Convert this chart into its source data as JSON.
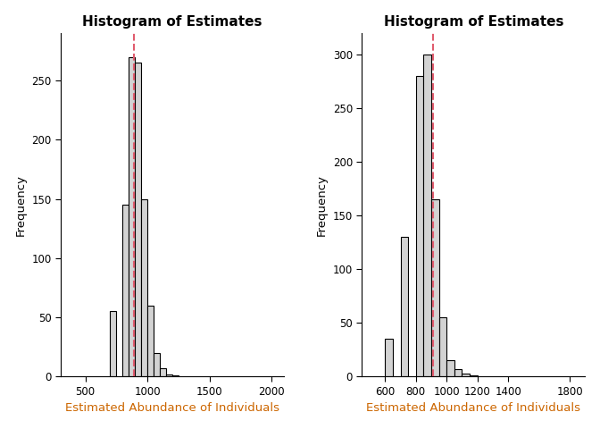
{
  "left": {
    "title": "Histogram of Estimates",
    "xlabel": "Estimated Abundance of Individuals",
    "ylabel": "Frequency",
    "bin_edges": [
      700,
      750,
      800,
      850,
      900,
      950,
      1000,
      1050,
      1100,
      1150,
      1200,
      1250,
      1300
    ],
    "frequencies": [
      55,
      0,
      145,
      270,
      265,
      150,
      60,
      20,
      7,
      2,
      1,
      0
    ],
    "vline": 890,
    "xlim": [
      300,
      2100
    ],
    "ylim": [
      0,
      290
    ],
    "xticks": [
      500,
      1000,
      1500,
      2000
    ],
    "yticks": [
      0,
      50,
      100,
      150,
      200,
      250
    ],
    "bar_color": "#d3d3d3",
    "bar_edgecolor": "#000000",
    "vline_color": "#e05c6e",
    "title_color": "#000000",
    "xlabel_color": "#cc6600",
    "ylabel_color": "#000000"
  },
  "right": {
    "title": "Histogram of Estimates",
    "xlabel": "Estimated Abundance of Individuals",
    "ylabel": "Frequency",
    "bin_edges": [
      600,
      650,
      700,
      750,
      800,
      850,
      900,
      950,
      1000,
      1050,
      1100,
      1150,
      1200,
      1250,
      1300
    ],
    "frequencies": [
      35,
      0,
      130,
      0,
      280,
      300,
      165,
      55,
      15,
      7,
      3,
      1,
      0,
      0
    ],
    "vline": 910,
    "xlim": [
      450,
      1900
    ],
    "ylim": [
      0,
      320
    ],
    "xticks": [
      600,
      800,
      1000,
      1200,
      1400,
      1800
    ],
    "yticks": [
      0,
      50,
      100,
      150,
      200,
      250,
      300
    ],
    "bar_color": "#d3d3d3",
    "bar_edgecolor": "#000000",
    "vline_color": "#e05c6e",
    "title_color": "#000000",
    "xlabel_color": "#cc6600",
    "ylabel_color": "#000000"
  },
  "background_color": "#ffffff",
  "figsize": [
    6.72,
    4.8
  ],
  "dpi": 100
}
